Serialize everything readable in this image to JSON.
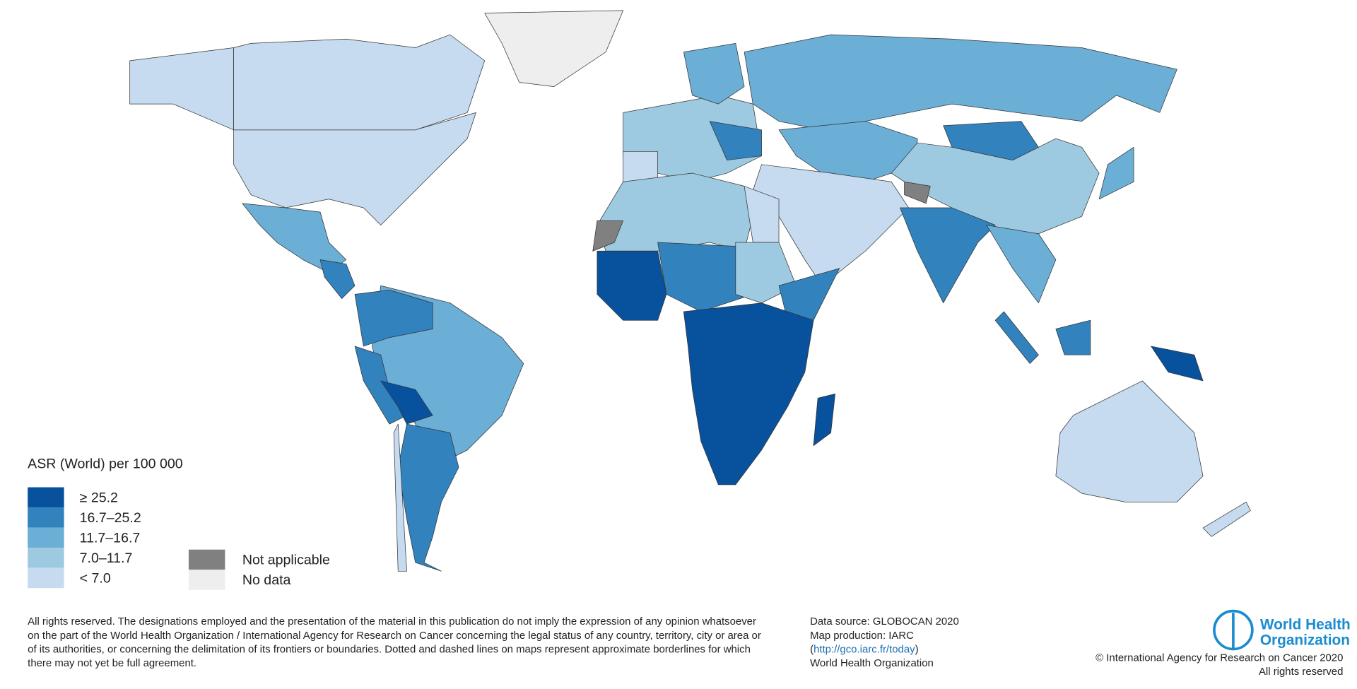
{
  "legend": {
    "title": "ASR (World) per 100 000",
    "classes": [
      {
        "label": "≥ 25.2",
        "color": "#08519c"
      },
      {
        "label": "16.7–25.2",
        "color": "#3182bd"
      },
      {
        "label": "11.7–16.7",
        "color": "#6baed6"
      },
      {
        "label": "7.0–11.7",
        "color": "#9ecae1"
      },
      {
        "label": "< 7.0",
        "color": "#c6dbef"
      }
    ],
    "other": [
      {
        "label": "Not applicable",
        "color": "#808080"
      },
      {
        "label": "No data",
        "color": "#eeeeee"
      }
    ]
  },
  "footer": {
    "disclaimer": [
      "All rights reserved. The designations employed and the presentation of the material in this publication do not imply the expression of any opinion whatsoever",
      "on the part of the World Health Organization / International Agency for Research on Cancer concerning the legal status of any country, territory, city or area or",
      "of its authorities, or concerning the delimitation of its frontiers or boundaries. Dotted and dashed lines on maps represent approximate borderlines for which",
      "there may not yet be full agreement."
    ],
    "source": [
      "Data source: GLOBOCAN 2020",
      "Map production: IARC"
    ],
    "link_line": [
      "(",
      "http://gco.iarc.fr/today",
      ")"
    ],
    "source_org": "World Health Organization",
    "logo": [
      "World Health",
      "Organization"
    ],
    "copyright": [
      "© International Agency for Research on Cancer 2020",
      "All rights reserved"
    ]
  }
}
